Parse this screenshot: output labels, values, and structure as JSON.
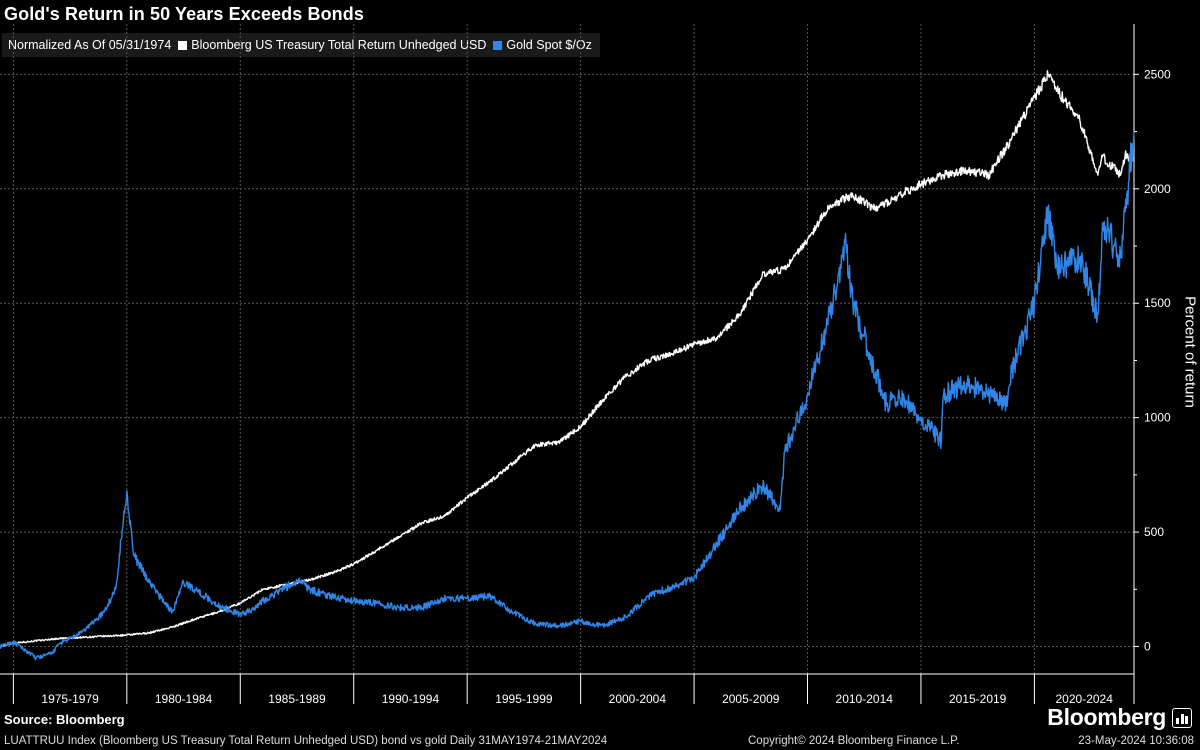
{
  "title": "Gold's Return in 50 Years Exceeds Bonds",
  "legend": {
    "note": "Normalized As Of 05/31/1974",
    "bond_label": "Bloomberg US Treasury Total Return Unhedged USD",
    "gold_label": "Gold Spot $/Oz"
  },
  "footer": {
    "source": "Source: Bloomberg",
    "description": "LUATTRUU Index (Bloomberg US Treasury Total Return Unhedged USD) bond vs gold  Daily 31MAY1974-21MAY2024",
    "copyright": "Copyright© 2024 Bloomberg Finance L.P.",
    "timestamp": "23-May-2024 10:36:08",
    "brand": "Bloomberg"
  },
  "colors": {
    "bond": "#ffffff",
    "gold": "#2f86e8",
    "grid": "#555555",
    "background": "#000000"
  },
  "chart_data": {
    "type": "line",
    "title": "Gold's Return in 50 Years Exceeds Bonds",
    "ylabel": "Percent of return",
    "xlabel": "",
    "x_range": [
      1974.41,
      2024.39
    ],
    "ylim": [
      -120,
      2720
    ],
    "y_ticks": [
      0,
      500,
      1000,
      1500,
      2000,
      2500
    ],
    "x_period_labels": [
      "1975-1979",
      "1980-1984",
      "1985-1989",
      "1990-1994",
      "1995-1999",
      "2000-2004",
      "2005-2009",
      "2010-2014",
      "2015-2019",
      "2020-2024"
    ],
    "x_period_bounds": [
      1975,
      1980,
      1985,
      1990,
      1995,
      2000,
      2005,
      2010,
      2015,
      2020,
      2025
    ],
    "grid": true,
    "series": [
      {
        "name": "Bloomberg US Treasury Total Return Unhedged USD",
        "color": "#ffffff",
        "x": [
          1974.41,
          1975,
          1976,
          1977,
          1978,
          1979,
          1980,
          1981,
          1982,
          1983,
          1984,
          1985,
          1986,
          1987,
          1988,
          1989,
          1990,
          1991,
          1992,
          1993,
          1994,
          1995,
          1996,
          1997,
          1998,
          1999,
          2000,
          2001,
          2002,
          2003,
          2004,
          2005,
          2006,
          2007,
          2008,
          2009,
          2010,
          2011,
          2012,
          2013,
          2014,
          2015,
          2016,
          2017,
          2018,
          2019,
          2020,
          2020.6,
          2021,
          2022,
          2022.8,
          2023,
          2023.8,
          2024,
          2024.39
        ],
        "values": [
          0,
          15,
          25,
          35,
          40,
          45,
          50,
          60,
          85,
          120,
          150,
          190,
          250,
          270,
          290,
          320,
          360,
          420,
          480,
          540,
          570,
          650,
          720,
          800,
          880,
          890,
          960,
          1080,
          1180,
          1250,
          1280,
          1320,
          1350,
          1450,
          1620,
          1650,
          1780,
          1930,
          1970,
          1910,
          1970,
          2020,
          2060,
          2080,
          2060,
          2220,
          2400,
          2500,
          2430,
          2300,
          2060,
          2140,
          2060,
          2150,
          2130
        ]
      },
      {
        "name": "Gold Spot $/Oz",
        "color": "#2f86e8",
        "x": [
          1974.41,
          1975,
          1976,
          1976.7,
          1977,
          1978,
          1979,
          1979.5,
          1980.0,
          1980.3,
          1981,
          1982,
          1982.5,
          1983,
          1984,
          1985,
          1985.5,
          1986,
          1987,
          1987.8,
          1988,
          1989,
          1990,
          1991,
          1992,
          1993,
          1994,
          1995,
          1996,
          1997,
          1998,
          1999,
          2000,
          2001,
          2002,
          2003,
          2004,
          2005,
          2006,
          2006.5,
          2007,
          2008,
          2008.8,
          2009,
          2010,
          2011,
          2011.7,
          2012,
          2013,
          2013.5,
          2014,
          2015,
          2015.9,
          2016,
          2017,
          2018,
          2018.8,
          2019,
          2020,
          2020.6,
          2021,
          2022,
          2022.8,
          2023,
          2023.8,
          2024,
          2024.39
        ],
        "values": [
          0,
          20,
          -50,
          -30,
          10,
          60,
          150,
          250,
          680,
          400,
          280,
          150,
          280,
          250,
          180,
          140,
          160,
          200,
          260,
          290,
          250,
          220,
          200,
          190,
          170,
          170,
          210,
          210,
          220,
          150,
          100,
          90,
          110,
          90,
          130,
          220,
          260,
          300,
          450,
          520,
          600,
          700,
          600,
          850,
          1100,
          1450,
          1750,
          1500,
          1200,
          1050,
          1100,
          1000,
          900,
          1100,
          1150,
          1100,
          1050,
          1200,
          1500,
          1900,
          1650,
          1700,
          1450,
          1850,
          1700,
          1900,
          2250
        ]
      }
    ]
  }
}
